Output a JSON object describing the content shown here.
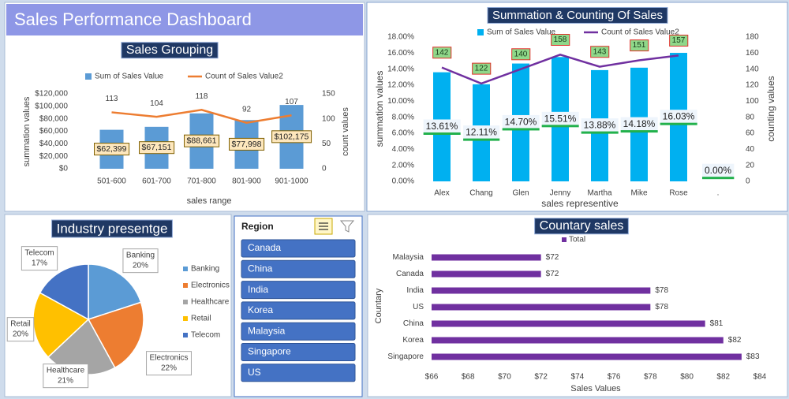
{
  "title": "Sales Performance Dashboard",
  "chart_data": [
    {
      "type": "combo",
      "title": "Sales Grouping",
      "categories": [
        "501-600",
        "601-700",
        "701-800",
        "801-900",
        "901-1000"
      ],
      "series": [
        {
          "name": "Sum of Sales Value",
          "type": "bar",
          "color": "#5b9bd5",
          "values": [
            62399,
            67151,
            88661,
            77998,
            102175
          ],
          "value_labels": [
            "$62,399",
            "$67,151",
            "$88,661",
            "$77,998",
            "$102,175"
          ]
        },
        {
          "name": "Count of Sales Value2",
          "type": "line",
          "axis": "y2",
          "color": "#ed7d31",
          "values": [
            113,
            104,
            118,
            92,
            107
          ]
        }
      ],
      "ylim": [
        0,
        120000
      ],
      "yticks": [
        {
          "value": 0,
          "label": "$0"
        },
        {
          "value": 20000,
          "label": "$20,000"
        },
        {
          "value": 40000,
          "label": "$40,000"
        },
        {
          "value": 60000,
          "label": "$60,000"
        },
        {
          "value": 80000,
          "label": "$80,000"
        },
        {
          "value": 100000,
          "label": "$100,000"
        },
        {
          "value": 120000,
          "label": "$120,000"
        }
      ],
      "y2lim": [
        0,
        150
      ],
      "y2ticks": [
        0,
        50,
        100,
        150
      ],
      "x_label": "sales range",
      "y_label": "summation values",
      "y2_label": "count values"
    },
    {
      "type": "combo",
      "title": "Summation & Counting Of Sales",
      "categories": [
        "Alex",
        "Chang",
        "Glen",
        "Jenny",
        "Martha",
        "Mike",
        "Rose",
        "."
      ],
      "series": [
        {
          "name": "Sum of Sales Value",
          "type": "bar",
          "color": "#00b0f0",
          "values": [
            13.61,
            12.11,
            14.7,
            15.51,
            13.88,
            14.18,
            16.03,
            0.0
          ],
          "value_labels": [
            "13.61%",
            "12.11%",
            "14.70%",
            "15.51%",
            "13.88%",
            "14.18%",
            "16.03%",
            "0.00%"
          ]
        },
        {
          "name": "Count of Sales Value2",
          "type": "line",
          "axis": "y2",
          "color": "#7030a0",
          "values": [
            142,
            122,
            140,
            158,
            143,
            151,
            157,
            null
          ]
        }
      ],
      "ylim": [
        0,
        18
      ],
      "yticks": [
        {
          "value": 0,
          "label": "0.00%"
        },
        {
          "value": 2,
          "label": "2.00%"
        },
        {
          "value": 4,
          "label": "4.00%"
        },
        {
          "value": 6,
          "label": "6.00%"
        },
        {
          "value": 8,
          "label": "8.00%"
        },
        {
          "value": 10,
          "label": "10.00%"
        },
        {
          "value": 12,
          "label": "12.00%"
        },
        {
          "value": 14,
          "label": "14.00%"
        },
        {
          "value": 16,
          "label": "16.00%"
        },
        {
          "value": 18,
          "label": "18.00%"
        }
      ],
      "y2lim": [
        0,
        180
      ],
      "y2ticks": [
        0,
        20,
        40,
        60,
        80,
        100,
        120,
        140,
        160,
        180
      ],
      "x_label": "sales representive",
      "y_label": "summation values",
      "y2_label": "counting values"
    },
    {
      "type": "pie",
      "title": "Industry presentge",
      "categories": [
        "Banking",
        "Electronics",
        "Healthcare",
        "Retail",
        "Telecom"
      ],
      "values": [
        20,
        22,
        21,
        20,
        17
      ],
      "value_labels": [
        "20%",
        "22%",
        "21%",
        "20%",
        "17%"
      ],
      "colors": [
        "#5b9bd5",
        "#ed7d31",
        "#a5a5a5",
        "#ffc000",
        "#4472c4"
      ]
    },
    {
      "type": "hbar",
      "title": "Countary sales",
      "categories": [
        "Malaysia",
        "Canada",
        "India",
        "US",
        "China",
        "Korea",
        "Singapore"
      ],
      "series": [
        {
          "name": "Total",
          "color": "#7030a0",
          "values": [
            72,
            72,
            78,
            78,
            81,
            82,
            83
          ],
          "value_labels": [
            "$72",
            "$72",
            "$78",
            "$78",
            "$81",
            "$82",
            "$83"
          ]
        }
      ],
      "xlim": [
        66,
        84
      ],
      "xticks": [
        {
          "value": 66,
          "label": "$66"
        },
        {
          "value": 68,
          "label": "$68"
        },
        {
          "value": 70,
          "label": "$70"
        },
        {
          "value": 72,
          "label": "$72"
        },
        {
          "value": 74,
          "label": "$74"
        },
        {
          "value": 76,
          "label": "$76"
        },
        {
          "value": 78,
          "label": "$78"
        },
        {
          "value": 80,
          "label": "$80"
        },
        {
          "value": 82,
          "label": "$82"
        },
        {
          "value": 84,
          "label": "$84"
        }
      ],
      "x_label": "Sales Values",
      "y_label": "Countary"
    }
  ],
  "slicer": {
    "title": "Region",
    "items": [
      "Canada",
      "China",
      "India",
      "Korea",
      "Malaysia",
      "Singapore",
      "US"
    ]
  }
}
